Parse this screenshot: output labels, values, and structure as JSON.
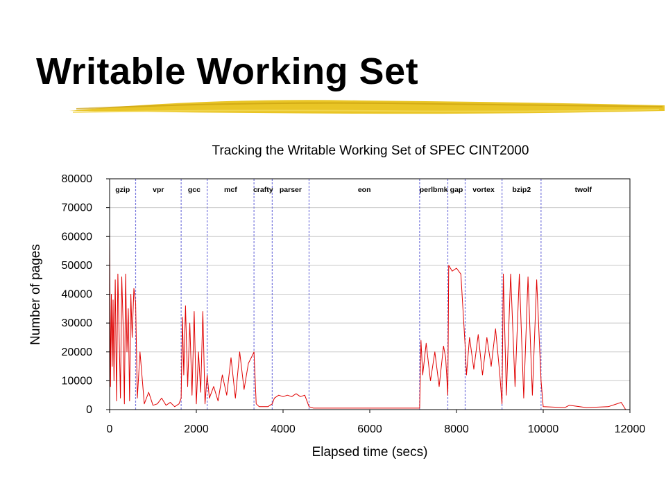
{
  "slide": {
    "title": "Writable Working Set",
    "accent_color": "#e8c21a"
  },
  "chart_data": {
    "type": "line",
    "title": "Tracking the Writable Working Set of SPEC CINT2000",
    "xlabel": "Elapsed time (secs)",
    "ylabel": "Number of pages",
    "xlim": [
      0,
      12000
    ],
    "ylim": [
      0,
      80000
    ],
    "x_ticks": [
      "0",
      "2000",
      "4000",
      "6000",
      "8000",
      "10000",
      "12000"
    ],
    "y_ticks": [
      "0",
      "10000",
      "20000",
      "30000",
      "40000",
      "50000",
      "60000",
      "70000",
      "80000"
    ],
    "grid": true,
    "series_color": "#e00000",
    "divider_color": "#7777dd",
    "benchmarks": [
      {
        "label": "gzip",
        "start": 0,
        "end": 600
      },
      {
        "label": "vpr",
        "start": 600,
        "end": 1650
      },
      {
        "label": "gcc",
        "start": 1650,
        "end": 2250
      },
      {
        "label": "mcf",
        "start": 2250,
        "end": 3330
      },
      {
        "label": "crafty",
        "start": 3330,
        "end": 3750
      },
      {
        "label": "parser",
        "start": 3750,
        "end": 4600
      },
      {
        "label": "eon",
        "start": 4600,
        "end": 7150
      },
      {
        "label": "perlbmk",
        "start": 7150,
        "end": 7800
      },
      {
        "label": "gap",
        "start": 7800,
        "end": 8200
      },
      {
        "label": "vortex",
        "start": 8200,
        "end": 9050
      },
      {
        "label": "bzip2",
        "start": 9050,
        "end": 9950
      },
      {
        "label": "twolf",
        "start": 9950,
        "end": 11900
      }
    ],
    "series": [
      {
        "x": [
          0,
          20,
          40,
          60,
          80,
          100,
          130,
          160,
          190,
          220,
          250,
          280,
          310,
          340,
          370,
          400,
          430,
          460,
          490,
          520,
          560,
          600,
          640,
          700,
          800,
          900,
          1000,
          1100,
          1200,
          1300,
          1400,
          1500,
          1600,
          1650,
          1680,
          1710,
          1750,
          1800,
          1850,
          1900,
          1950,
          2000,
          2050,
          2100,
          2150,
          2200,
          2250,
          2300,
          2400,
          2500,
          2600,
          2700,
          2800,
          2900,
          3000,
          3100,
          3200,
          3300,
          3330,
          3380,
          3450,
          3550,
          3650,
          3750,
          3800,
          3900,
          4000,
          4100,
          4200,
          4300,
          4400,
          4500,
          4600,
          4700,
          5000,
          5500,
          6000,
          6500,
          7000,
          7150,
          7180,
          7220,
          7300,
          7400,
          7500,
          7600,
          7700,
          7750,
          7800,
          7820,
          7900,
          8000,
          8100,
          8200,
          8230,
          8300,
          8400,
          8500,
          8600,
          8700,
          8800,
          8900,
          9000,
          9050,
          9080,
          9150,
          9250,
          9350,
          9450,
          9550,
          9650,
          9750,
          9850,
          9950,
          10000,
          10500,
          10600,
          11000,
          11500,
          11800,
          11900
        ],
        "y": [
          62000,
          8000,
          40000,
          15000,
          38000,
          10000,
          45000,
          3000,
          47000,
          25000,
          4000,
          46000,
          30000,
          2000,
          47000,
          20000,
          35000,
          3000,
          40000,
          25000,
          42000,
          37000,
          4000,
          20000,
          2000,
          6000,
          1500,
          2000,
          4000,
          1500,
          2500,
          1000,
          2000,
          4000,
          32000,
          12000,
          36000,
          8000,
          30000,
          5000,
          34000,
          2000,
          20000,
          6000,
          34000,
          2000,
          12000,
          4000,
          8000,
          3000,
          12000,
          5000,
          18000,
          4000,
          20000,
          7000,
          16000,
          19000,
          20000,
          2000,
          1000,
          1000,
          1000,
          2000,
          4000,
          5000,
          4500,
          5000,
          4500,
          5500,
          4500,
          5000,
          1000,
          500,
          500,
          500,
          500,
          500,
          500,
          500,
          24000,
          12000,
          23000,
          10000,
          20000,
          8000,
          22000,
          18000,
          5000,
          50000,
          48000,
          49000,
          47000,
          22000,
          12000,
          25000,
          14000,
          26000,
          12000,
          25000,
          15000,
          28000,
          12000,
          2000,
          47000,
          5000,
          47000,
          8000,
          47000,
          4000,
          46000,
          5000,
          45000,
          10000,
          1000,
          700,
          1500,
          700,
          1000,
          2500,
          0
        ]
      }
    ]
  }
}
